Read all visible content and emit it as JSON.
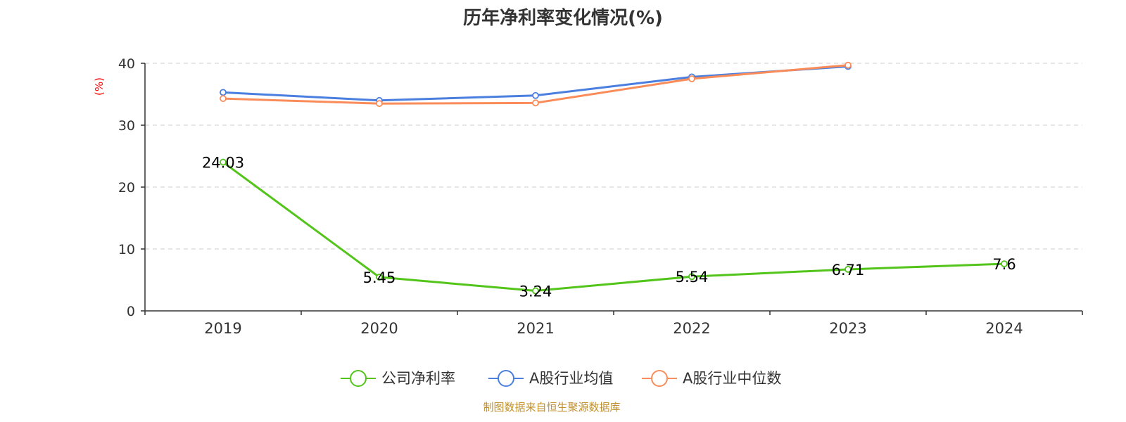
{
  "chart_data": {
    "type": "line",
    "title": "历年净利率变化情况(%)",
    "ylabel": "(%)",
    "xlabel": "",
    "categories": [
      "2019",
      "2020",
      "2021",
      "2022",
      "2023",
      "2024"
    ],
    "ylim": [
      0,
      40
    ],
    "yticks": [
      "0",
      "10",
      "20",
      "30",
      "40"
    ],
    "grid": true,
    "legend_position": "bottom",
    "series": [
      {
        "name": "公司净利率",
        "color": "#52c41a",
        "values": [
          24.03,
          5.45,
          3.24,
          5.54,
          6.71,
          7.6
        ],
        "labels": [
          "24.03",
          "5.45",
          "3.24",
          "5.54",
          "6.71",
          "7.6"
        ]
      },
      {
        "name": "A股行业均值",
        "color": "#4a7fdf",
        "values": [
          35.3,
          34.0,
          34.8,
          37.8,
          39.5,
          null
        ]
      },
      {
        "name": "A股行业中位数",
        "color": "#fa8c5a",
        "values": [
          34.3,
          33.5,
          33.6,
          37.5,
          39.7,
          null
        ]
      }
    ],
    "source": "制图数据来自恒生聚源数据库"
  }
}
